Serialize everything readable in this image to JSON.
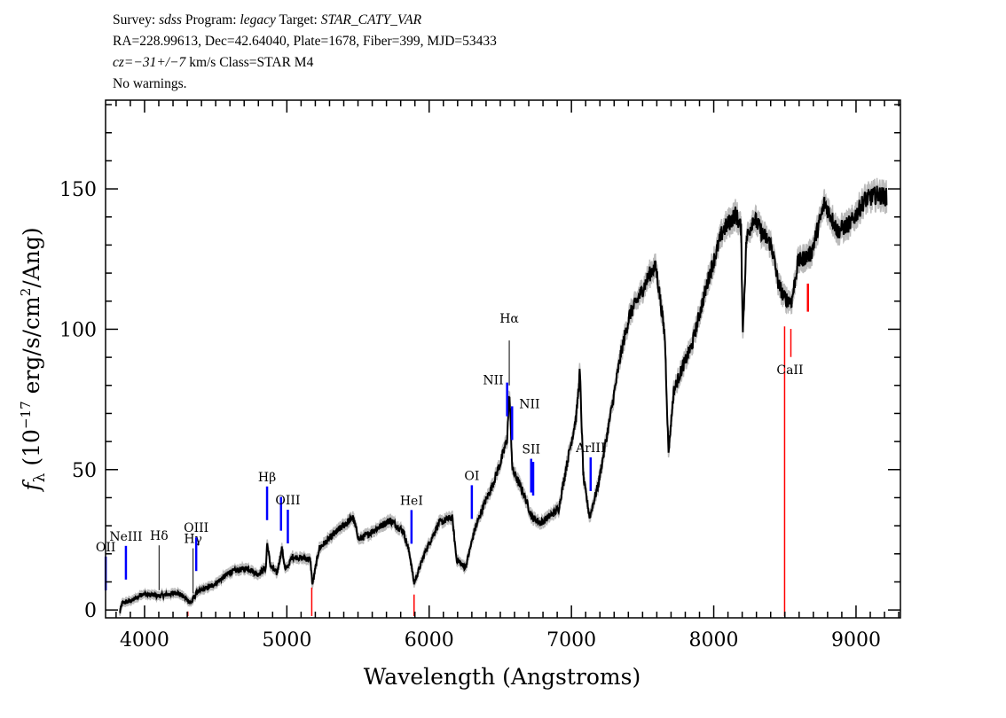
{
  "header": {
    "line1": {
      "survey_label": "Survey: ",
      "survey": "sdss",
      "program_label": " Program: ",
      "program": "legacy",
      "target_label": " Target: ",
      "target": "STAR_CATY_VAR"
    },
    "line2": "RA=228.99613, Dec=42.64040, Plate=1678, Fiber=399, MJD=53433",
    "line3": {
      "cz_label": "cz=",
      "cz": "−31+/−7",
      "rest": " km/s Class=STAR M4"
    },
    "line4": "No warnings."
  },
  "chart_data": {
    "type": "line",
    "title": "",
    "xlabel": "Wavelength (Angstroms)",
    "ylabel": "f_λ (10^-17 erg/s/cm^2/Ang)",
    "ylabel_parts": {
      "f": "f",
      "sub": "λ",
      "pre": " (10",
      "exp": "−17",
      "mid": " erg/s/cm",
      "exp2": "2",
      "post": "/Ang)"
    },
    "xlim": [
      3726,
      9312
    ],
    "ylim": [
      -2.8,
      181.6
    ],
    "x_ticks": [
      4000,
      5000,
      6000,
      7000,
      8000,
      9000
    ],
    "y_ticks": [
      0,
      50,
      100,
      150
    ],
    "grid": false,
    "colors": {
      "spectrum": "#000000",
      "error": "#bbbbbb",
      "emission": "#0000ff",
      "absorption": "#ff0000",
      "balmer": "#000000"
    },
    "spectrum": {
      "wavelength": [
        3825,
        3844,
        3919,
        3981,
        4106,
        4230,
        4293,
        4324,
        4368,
        4480,
        4604,
        4729,
        4791,
        4853,
        4861,
        4884,
        4930,
        4966,
        4990,
        5040,
        5165,
        5180,
        5227,
        5352,
        5464,
        5508,
        5601,
        5726,
        5819,
        5863,
        5894,
        5975,
        6068,
        6162,
        6193,
        6255,
        6317,
        6380,
        6442,
        6504,
        6548,
        6563,
        6585,
        6660,
        6723,
        6785,
        6910,
        6972,
        7034,
        7059,
        7084,
        7128,
        7190,
        7283,
        7346,
        7408,
        7470,
        7563,
        7594,
        7626,
        7657,
        7682,
        7719,
        7769,
        7844,
        7968,
        8062,
        8155,
        8192,
        8205,
        8230,
        8280,
        8342,
        8405,
        8455,
        8498,
        8548,
        8592,
        8685,
        8779,
        8872,
        8966,
        9059,
        9153,
        9216
      ],
      "flux": [
        -1,
        2.5,
        3.5,
        5.7,
        5,
        6.3,
        4,
        2.5,
        6.3,
        8.8,
        13.6,
        15,
        12.6,
        15,
        24,
        16,
        13,
        22,
        14,
        19,
        18,
        9,
        22,
        28,
        33,
        25,
        28,
        32,
        28,
        20,
        9.5,
        21,
        31,
        33,
        18,
        15,
        28,
        37,
        44,
        53,
        61,
        78,
        50,
        42,
        33,
        31,
        36,
        53,
        69,
        85,
        47,
        33,
        45,
        72,
        91,
        105,
        111,
        121,
        122,
        110,
        97,
        56,
        78,
        85,
        94,
        119,
        135,
        141,
        136,
        99,
        132,
        140,
        134,
        130,
        116,
        111,
        110,
        124,
        127,
        145,
        135,
        138,
        146,
        148,
        147
      ]
    },
    "lines": [
      {
        "label": "OII",
        "wavelength": 3727,
        "kind": "emission"
      },
      {
        "label": "NeIII",
        "wavelength": 3869,
        "kind": "emission"
      },
      {
        "label": "Hδ",
        "wavelength": 4102,
        "kind": "balmer"
      },
      {
        "label": "Hγ",
        "wavelength": 4341,
        "kind": "balmer"
      },
      {
        "label": "OIII",
        "wavelength": 4363,
        "kind": "emission"
      },
      {
        "label": "Hβ",
        "wavelength": 4861,
        "kind": "emission"
      },
      {
        "label": "OIII",
        "wavelength": 4959,
        "kind": "emission",
        "nolabel": true
      },
      {
        "label": "OIII",
        "wavelength": 5007,
        "kind": "emission"
      },
      {
        "label": "HeI",
        "wavelength": 5876,
        "kind": "emission"
      },
      {
        "label": "OI",
        "wavelength": 6300,
        "kind": "emission"
      },
      {
        "label": "NII",
        "wavelength": 6548,
        "kind": "emission",
        "side": "left"
      },
      {
        "label": "Hα",
        "wavelength": 6563,
        "kind": "balmer"
      },
      {
        "label": "NII",
        "wavelength": 6583,
        "kind": "emission",
        "side": "right"
      },
      {
        "label": "SII",
        "wavelength": 6717,
        "kind": "emission"
      },
      {
        "label": "SII",
        "wavelength": 6731,
        "kind": "emission",
        "nolabel": true
      },
      {
        "label": "ArIII",
        "wavelength": 7135,
        "kind": "emission"
      },
      {
        "label": "",
        "wavelength": 4304,
        "kind": "absorption"
      },
      {
        "label": "",
        "wavelength": 5175,
        "kind": "absorption"
      },
      {
        "label": "",
        "wavelength": 5894,
        "kind": "absorption"
      },
      {
        "label": "CaII",
        "wavelength": 8498,
        "kind": "absorption"
      },
      {
        "label": "",
        "wavelength": 8542,
        "kind": "absorption"
      },
      {
        "label": "",
        "wavelength": 8662,
        "kind": "absorption"
      }
    ]
  }
}
